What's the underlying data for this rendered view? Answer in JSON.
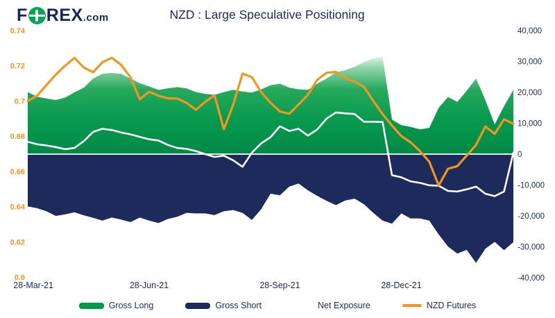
{
  "header": {
    "logo_part1": "F",
    "logo_part2": "REX",
    "logo_suffix": ".com"
  },
  "colors": {
    "navy": "#1c2b5b",
    "orange": "#f7941e",
    "green": "#009a4d",
    "white": "#ffffff",
    "left_axis_label": "#f7941e",
    "right_axis_label": "#1b2a5a",
    "gross_long_gradient": [
      "#e6f6ec",
      "#8ed5a8",
      "#25a95c",
      "#089a4e",
      "#008845"
    ]
  },
  "chart_data": {
    "type": "combo",
    "title": "NZD : Large Speculative Positioning",
    "grid": false,
    "legend_position": "bottom",
    "x_unit": "weekly COT observations",
    "x_tick_labels": [
      "28-Mar-21",
      "28-Jun-21",
      "28-Sep-21",
      "28-Dec-21"
    ],
    "x_tick_positions": [
      0.6,
      13,
      27,
      40
    ],
    "left_axis": {
      "min": 0.6,
      "max": 0.74,
      "ticks": [
        "0.74",
        "0.72",
        "0.7",
        "0.68",
        "0.66",
        "0.64",
        "0.62",
        "0.6"
      ],
      "color": "#f7941e"
    },
    "right_axis": {
      "min": -40000,
      "max": 40000,
      "ticks": [
        "40,000",
        "30,000",
        "20,000",
        "10,000",
        "0",
        "-10,000",
        "-20,000",
        "-30,000",
        "-40,000"
      ],
      "color": "#1b2a5a"
    },
    "series": [
      {
        "name": "Gross Long",
        "type": "area",
        "axis": "right",
        "color": "#009a4d",
        "values": [
          20100,
          18600,
          18000,
          17500,
          18300,
          20000,
          21500,
          24500,
          26000,
          26300,
          26000,
          24500,
          23000,
          21900,
          20800,
          21300,
          21700,
          21300,
          20100,
          19500,
          19200,
          20100,
          20800,
          20300,
          19900,
          21000,
          22300,
          22800,
          21500,
          21000,
          20800,
          22800,
          24500,
          26500,
          27200,
          28300,
          29800,
          31000,
          31500,
          11200,
          9400,
          8800,
          8000,
          8500,
          15000,
          18500,
          16900,
          20500,
          24500,
          17500,
          9600,
          15500,
          20800
        ]
      },
      {
        "name": "Gross Short",
        "type": "area",
        "axis": "right",
        "color": "#1c2b5b",
        "values": [
          -16900,
          -17500,
          -18500,
          -20000,
          -19500,
          -18800,
          -19800,
          -20600,
          -21500,
          -20500,
          -21200,
          -22000,
          -20500,
          -21500,
          -22300,
          -21000,
          -20300,
          -19000,
          -19200,
          -19200,
          -19700,
          -18500,
          -18100,
          -19000,
          -21300,
          -17800,
          -12800,
          -13300,
          -10500,
          -9500,
          -11700,
          -13500,
          -15100,
          -16500,
          -15000,
          -14400,
          -16200,
          -19000,
          -21500,
          -22500,
          -19200,
          -20800,
          -20800,
          -21500,
          -26000,
          -29900,
          -32200,
          -31000,
          -35200,
          -30600,
          -28400,
          -31100,
          -28500
        ]
      },
      {
        "name": "Net Exposure",
        "type": "line",
        "axis": "right",
        "color": "#ffffff",
        "values": [
          4000,
          3200,
          2800,
          2300,
          1600,
          2000,
          4200,
          7200,
          8200,
          7800,
          7000,
          6400,
          5600,
          4800,
          4400,
          3000,
          2000,
          1700,
          1000,
          0,
          -900,
          -500,
          -2000,
          -4100,
          500,
          3500,
          5500,
          9000,
          7500,
          8200,
          6000,
          8000,
          11500,
          13500,
          13200,
          13000,
          10500,
          10500,
          10400,
          -6800,
          -7500,
          -8800,
          -9300,
          -10100,
          -10200,
          -11900,
          -12100,
          -11400,
          -10500,
          -12800,
          -13600,
          -12100,
          500
        ]
      },
      {
        "name": "NZD Futures",
        "type": "line",
        "axis": "left",
        "color": "#f7941e",
        "values": [
          0.7,
          0.703,
          0.709,
          0.715,
          0.72,
          0.7245,
          0.719,
          0.7163,
          0.722,
          0.7245,
          0.7205,
          0.7135,
          0.701,
          0.7053,
          0.7029,
          0.7015,
          0.7014,
          0.699,
          0.695,
          0.6995,
          0.7033,
          0.684,
          0.698,
          0.7155,
          0.7135,
          0.705,
          0.699,
          0.694,
          0.6927,
          0.698,
          0.7035,
          0.712,
          0.716,
          0.7165,
          0.713,
          0.711,
          0.708,
          0.7,
          0.6925,
          0.686,
          0.68,
          0.6765,
          0.6715,
          0.6655,
          0.652,
          0.6615,
          0.663,
          0.669,
          0.675,
          0.6855,
          0.6813,
          0.6896,
          0.687
        ]
      }
    ]
  },
  "legend": {
    "items": [
      {
        "label": "Gross Long",
        "swatch": "area",
        "color": "#009a4d"
      },
      {
        "label": "Gross Short",
        "swatch": "area",
        "color": "#1c2b5b"
      },
      {
        "label": "Net Exposure",
        "swatch": "line",
        "color": "#ffffff"
      },
      {
        "label": "NZD Futures",
        "swatch": "line",
        "color": "#f7941e"
      }
    ]
  }
}
